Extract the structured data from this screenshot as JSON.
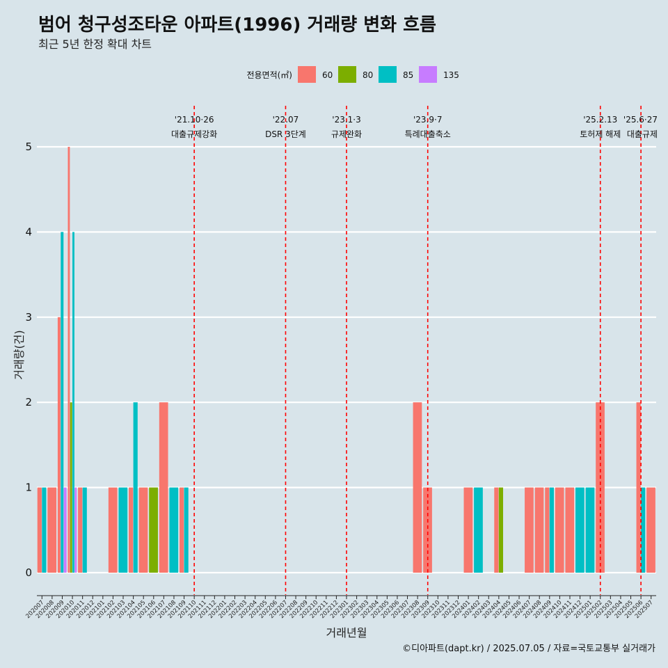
{
  "chart_data": {
    "type": "bar",
    "title": "범어 청구성조타운 아파트(1996) 거래량 변화 흐름",
    "subtitle": "최근 5년 한정 확대 차트",
    "xlabel": "거래년월",
    "ylabel": "거래량(건)",
    "ylim": [
      0,
      5
    ],
    "yticks": [
      0,
      1,
      2,
      3,
      4,
      5
    ],
    "grid": true,
    "legend": {
      "title": "전용면적(㎡)",
      "placement": "top",
      "items": [
        {
          "label": "60",
          "color": "#F8766D"
        },
        {
          "label": "80",
          "color": "#7CAE00"
        },
        {
          "label": "85",
          "color": "#00BFC4"
        },
        {
          "label": "135",
          "color": "#C77CFF"
        }
      ]
    },
    "categories": [
      "202007",
      "202008",
      "202009",
      "202010",
      "202011",
      "202012",
      "202101",
      "202102",
      "202103",
      "202104",
      "202105",
      "202106",
      "202107",
      "202108",
      "202109",
      "202110",
      "202111",
      "202112",
      "202201",
      "202202",
      "202203",
      "202204",
      "202205",
      "202206",
      "202207",
      "202208",
      "202209",
      "202210",
      "202211",
      "202212",
      "202301",
      "202302",
      "202303",
      "202304",
      "202305",
      "202306",
      "202307",
      "202308",
      "202309",
      "202310",
      "202311",
      "202312",
      "202401",
      "202402",
      "202403",
      "202404",
      "202405",
      "202406",
      "202407",
      "202408",
      "202409",
      "202410",
      "202411",
      "202412",
      "202501",
      "202502",
      "202503",
      "202504",
      "202505",
      "202506",
      "202507"
    ],
    "series": [
      {
        "name": "60",
        "color": "#F8766D",
        "values": [
          1,
          1,
          3,
          5,
          1,
          0,
          0,
          1,
          0,
          1,
          1,
          0,
          2,
          0,
          1,
          0,
          0,
          0,
          0,
          0,
          0,
          0,
          0,
          0,
          0,
          0,
          0,
          0,
          0,
          0,
          0,
          0,
          0,
          0,
          0,
          0,
          0,
          2,
          1,
          0,
          0,
          0,
          1,
          0,
          0,
          1,
          0,
          0,
          1,
          1,
          1,
          1,
          1,
          0,
          0,
          2,
          0,
          0,
          0,
          2,
          1
        ]
      },
      {
        "name": "80",
        "color": "#7CAE00",
        "values": [
          0,
          0,
          0,
          2,
          0,
          0,
          0,
          0,
          0,
          0,
          0,
          1,
          0,
          0,
          0,
          0,
          0,
          0,
          0,
          0,
          0,
          0,
          0,
          0,
          0,
          0,
          0,
          0,
          0,
          0,
          0,
          0,
          0,
          0,
          0,
          0,
          0,
          0,
          0,
          0,
          0,
          0,
          0,
          0,
          0,
          1,
          0,
          0,
          0,
          0,
          0,
          0,
          0,
          0,
          0,
          0,
          0,
          0,
          0,
          0,
          0
        ]
      },
      {
        "name": "85",
        "color": "#00BFC4",
        "values": [
          1,
          0,
          4,
          4,
          1,
          0,
          0,
          0,
          1,
          2,
          0,
          0,
          0,
          1,
          1,
          0,
          0,
          0,
          0,
          0,
          0,
          0,
          0,
          0,
          0,
          0,
          0,
          0,
          0,
          0,
          0,
          0,
          0,
          0,
          0,
          0,
          0,
          0,
          0,
          0,
          0,
          0,
          0,
          1,
          0,
          0,
          0,
          0,
          0,
          0,
          1,
          0,
          0,
          1,
          1,
          0,
          0,
          0,
          0,
          1,
          0
        ]
      },
      {
        "name": "135",
        "color": "#C77CFF",
        "values": [
          0,
          0,
          1,
          1,
          0,
          0,
          0,
          0,
          0,
          0,
          0,
          0,
          0,
          0,
          0,
          0,
          0,
          0,
          0,
          0,
          0,
          0,
          0,
          0,
          0,
          0,
          0,
          0,
          0,
          0,
          0,
          0,
          0,
          0,
          0,
          0,
          0,
          0,
          0,
          0,
          0,
          0,
          0,
          0,
          0,
          0,
          0,
          0,
          0,
          0,
          0,
          0,
          0,
          0,
          0,
          0,
          0,
          0,
          0,
          0,
          0
        ]
      }
    ],
    "events": [
      {
        "month": "202110",
        "date": "'21.10·26",
        "label": "대출규제강화"
      },
      {
        "month": "202207",
        "date": "'22.07",
        "label": "DSR 3단계"
      },
      {
        "month": "202301",
        "date": "'23.1·3",
        "label": "규제완화"
      },
      {
        "month": "202309",
        "date": "'23.9·7",
        "label": "특례대출축소"
      },
      {
        "month": "202502",
        "date": "'25.2.13",
        "label": "토허제 해제"
      },
      {
        "month": "202506",
        "date": "'25.6·27",
        "label": "대출규제"
      }
    ],
    "event_color": "#ff0000",
    "caption": "©디아파트(dapt.kr) / 2025.07.05 / 자료=국토교통부 실거래가"
  }
}
